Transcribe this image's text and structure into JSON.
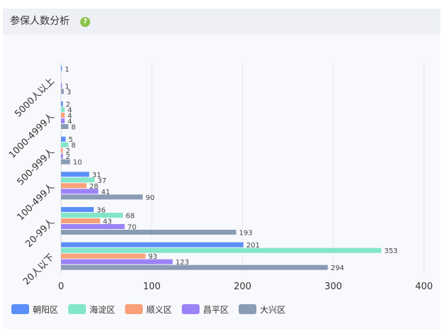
{
  "panel": {
    "title": "参保人数分析",
    "help_icon": "question-circle-icon",
    "help_symbol": "?"
  },
  "chart_data": {
    "type": "bar",
    "orientation": "horizontal",
    "categories": [
      "20人以下",
      "20-99人",
      "100-499人",
      "500-999人",
      "1000-4999人",
      "5000人以上"
    ],
    "series": [
      {
        "name": "朝阳区",
        "color": "#5b8ff9",
        "values": [
          201,
          36,
          31,
          5,
          2,
          1
        ]
      },
      {
        "name": "海淀区",
        "color": "#83e6c8",
        "values": [
          353,
          68,
          37,
          8,
          4,
          null
        ]
      },
      {
        "name": "顺义区",
        "color": "#f9a07a",
        "values": [
          93,
          43,
          28,
          2,
          4,
          null
        ]
      },
      {
        "name": "昌平区",
        "color": "#9b82f7",
        "values": [
          123,
          70,
          41,
          2,
          4,
          1
        ]
      },
      {
        "name": "大兴区",
        "color": "#8a9bb5",
        "values": [
          294,
          193,
          90,
          10,
          8,
          3
        ]
      }
    ],
    "xlim": [
      0,
      400
    ],
    "xticks": [
      0,
      100,
      200,
      300,
      400
    ],
    "grid": true,
    "legend_position": "bottom-left",
    "data_labels": true
  }
}
